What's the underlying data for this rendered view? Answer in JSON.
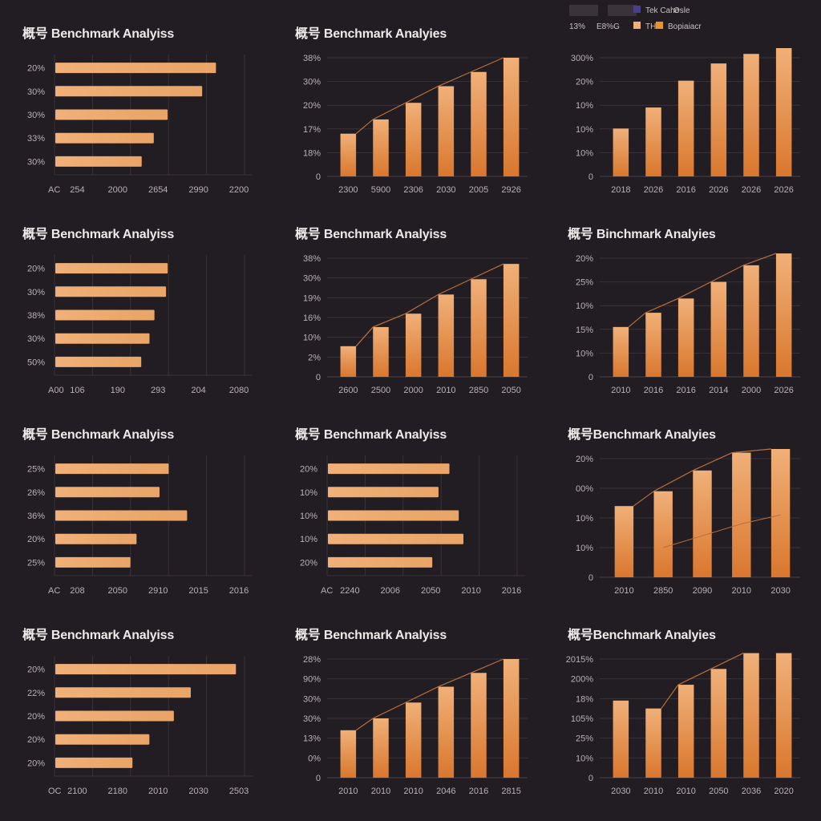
{
  "colors": {
    "background": "#221d22",
    "bar_light": "#f0b078",
    "bar_dark": "#d9772e",
    "trend_line": "#b8703e",
    "grid": "#3a333a",
    "legend_purple": "#4a3f8a"
  },
  "chart_data": [
    {
      "id": "p1",
      "type": "bar",
      "orientation": "horizontal",
      "title": "概号 Benchmark Analyiss",
      "categories": [
        "20%",
        "30%",
        "30%",
        "33%",
        "30%"
      ],
      "values": [
        93,
        85,
        65,
        57,
        50
      ],
      "xticks": [
        "AC",
        "254",
        "2000",
        "2654",
        "2990",
        "2200"
      ],
      "xlim": [
        0,
        110
      ],
      "grid": true
    },
    {
      "id": "p2",
      "type": "bar",
      "orientation": "vertical",
      "title": "概号 Benchmark Analyies",
      "trend": true,
      "categories": [
        "2300",
        "5900",
        "2306",
        "2030",
        "2005",
        "2926"
      ],
      "values": [
        18,
        24,
        31,
        38,
        44,
        50
      ],
      "yticks": [
        "0",
        "18%",
        "17%",
        "20%",
        "30%",
        "38%"
      ],
      "ylim": [
        0,
        50
      ],
      "grid": true
    },
    {
      "id": "p3",
      "type": "bar",
      "orientation": "vertical",
      "title": "",
      "trend": false,
      "legend": {
        "items": [
          {
            "label": "",
            "swatch": "#3a343a"
          },
          {
            "label": "",
            "swatch": "#3a343a"
          },
          {
            "label": "Tek Cahe",
            "swatch": "#4a3f8a"
          },
          {
            "label": "Osle",
            "swatch": ""
          },
          {
            "label": "13%",
            "swatch": ""
          },
          {
            "label": "E8%G",
            "swatch": ""
          },
          {
            "label": "TH3",
            "swatch": "#f0b078"
          },
          {
            "label": "Bopiaiacr",
            "swatch": "#e8932f"
          }
        ],
        "position": "top"
      },
      "categories": [
        "2018",
        "2026",
        "2016",
        "2026",
        "2026",
        "2026"
      ],
      "values": [
        25,
        36,
        50,
        59,
        64,
        68
      ],
      "yticks": [
        "0",
        "10%",
        "10%",
        "10%",
        "20%",
        "300%"
      ],
      "ylim": [
        0,
        62
      ],
      "grid": true
    },
    {
      "id": "p4",
      "type": "bar",
      "orientation": "horizontal",
      "title": "概号 Benchmark Analyiss",
      "categories": [
        "20%",
        "30%",
        "38%",
        "30%",
        "50%"
      ],
      "values": [
        68,
        67,
        60,
        57,
        52
      ],
      "xticks": [
        "A00",
        "106",
        "190",
        "293",
        "204",
        "2080"
      ],
      "xlim": [
        0,
        115
      ],
      "grid": true
    },
    {
      "id": "p5",
      "type": "bar",
      "orientation": "vertical",
      "title": "概号 Benchmark Analyiss",
      "trend": true,
      "categories": [
        "2600",
        "2500",
        "2000",
        "2010",
        "2850",
        "2050"
      ],
      "values": [
        16,
        26,
        33,
        43,
        51,
        59
      ],
      "yticks": [
        "0",
        "2%",
        "10%",
        "16%",
        "19%",
        "30%",
        "38%"
      ],
      "ylim": [
        0,
        62
      ],
      "grid": true
    },
    {
      "id": "p6",
      "type": "bar",
      "orientation": "vertical",
      "title": "概号 Binchmark Analyies",
      "trend": true,
      "categories": [
        "2010",
        "2016",
        "2016",
        "2014",
        "2000",
        "2026"
      ],
      "values": [
        21,
        27,
        33,
        40,
        47,
        52
      ],
      "yticks": [
        "0",
        "10%",
        "15%",
        "10%",
        "25%",
        "20%"
      ],
      "ylim": [
        0,
        50
      ],
      "grid": true
    },
    {
      "id": "p7",
      "type": "bar",
      "orientation": "horizontal",
      "title": "概号 Benchmark Analyiss",
      "categories": [
        "25%",
        "26%",
        "36%",
        "20%",
        "25%"
      ],
      "values": [
        74,
        68,
        86,
        53,
        49
      ],
      "xticks": [
        "AC",
        "208",
        "2050",
        "2910",
        "2015",
        "2016"
      ],
      "xlim": [
        0,
        124
      ],
      "grid": true
    },
    {
      "id": "p8",
      "type": "bar",
      "orientation": "horizontal",
      "title": "概号 Benchmark Analyiss",
      "categories": [
        "20%",
        "10%",
        "10%",
        "10%",
        "20%"
      ],
      "values": [
        78,
        71,
        84,
        87,
        67
      ],
      "xticks": [
        "AC",
        "2240",
        "2006",
        "2050",
        "2010",
        "2016"
      ],
      "xlim": [
        0,
        122
      ],
      "grid": true
    },
    {
      "id": "p9",
      "type": "bar",
      "orientation": "vertical",
      "title": "概号Benchmark Analyies",
      "trend": true,
      "second_trend": [
        null,
        10,
        14,
        18,
        21
      ],
      "categories": [
        "2010",
        "2850",
        "2090",
        "2010",
        "2030"
      ],
      "values": [
        24,
        29,
        36,
        42,
        45
      ],
      "yticks": [
        "0",
        "10%",
        "10%",
        "00%",
        "20%"
      ],
      "ylim": [
        0,
        40
      ],
      "grid": true
    },
    {
      "id": "p10",
      "type": "bar",
      "orientation": "horizontal",
      "title": "概号 Benchmark Analyiss",
      "categories": [
        "20%",
        "22%",
        "20%",
        "20%",
        "20%"
      ],
      "values": [
        96,
        72,
        63,
        50,
        41
      ],
      "xticks": [
        "OC",
        "2100",
        "2180",
        "2010",
        "2030",
        "2503"
      ],
      "xlim": [
        0,
        101
      ],
      "grid": true
    },
    {
      "id": "p11",
      "type": "bar",
      "orientation": "vertical",
      "title": "概号 Benchmark Analyiss",
      "trend": true,
      "categories": [
        "2010",
        "2010",
        "2010",
        "2046",
        "2016",
        "2815"
      ],
      "values": [
        24,
        30,
        38,
        46,
        53,
        60
      ],
      "yticks": [
        "0",
        "0%",
        "13%",
        "30%",
        "30%",
        "90%",
        "28%"
      ],
      "ylim": [
        0,
        60
      ],
      "grid": true
    },
    {
      "id": "p12",
      "type": "bar",
      "orientation": "vertical",
      "title": "概号Benchmark Analyies",
      "trend": true,
      "trend_from": 1,
      "trend_to": 4,
      "categories": [
        "2030",
        "2010",
        "2010",
        "2050",
        "2036",
        "2020"
      ],
      "values": [
        39,
        35,
        47,
        55,
        63,
        63
      ],
      "yticks": [
        "0",
        "10%",
        "25%",
        "105%",
        "18%",
        "200%",
        "2015%"
      ],
      "ylim": [
        0,
        60
      ],
      "grid": true
    }
  ]
}
